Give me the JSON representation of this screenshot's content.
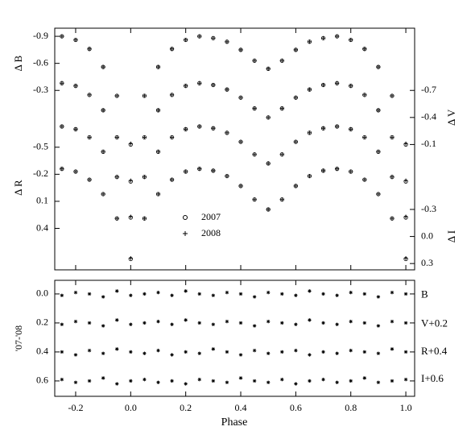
{
  "chart_data": {
    "type": "scatter",
    "x": [
      -0.25,
      -0.2,
      -0.15,
      -0.1,
      -0.05,
      0,
      0.05,
      0.1,
      0.15,
      0.2,
      0.25,
      0.3,
      0.35,
      0.4,
      0.45,
      0.5,
      0.55,
      0.6,
      0.65,
      0.7,
      0.75,
      0.8,
      0.85,
      0.9,
      0.95,
      1.0
    ],
    "xlim": [
      -0.276,
      1.032
    ],
    "xticks": [
      -0.2,
      {
        "value": 0,
        "label": "0.0"
      },
      0.2,
      0.4,
      0.6,
      0.8,
      {
        "value": 1,
        "label": "1.0"
      }
    ],
    "xlabel": "Phase",
    "y_inverted": true,
    "bands": [
      {
        "label": "Δ B",
        "side": "left",
        "ylim": [
          -0.99,
          1.69
        ],
        "yticks": [
          -0.9,
          -0.6,
          -0.3
        ],
        "series": [
          {
            "name": "2007",
            "marker": "circle",
            "values": [
              -0.9,
              -0.86,
              -0.76,
              -0.56,
              -0.24,
              0.3,
              -0.24,
              -0.56,
              -0.76,
              -0.86,
              -0.9,
              -0.88,
              -0.84,
              -0.75,
              -0.63,
              -0.54,
              -0.63,
              -0.75,
              -0.84,
              -0.88,
              -0.9,
              -0.86,
              -0.76,
              -0.56,
              -0.24,
              0.3
            ]
          },
          {
            "name": "2008",
            "marker": "plus",
            "values": [
              -0.9,
              -0.86,
              -0.76,
              -0.56,
              -0.24,
              0.29,
              -0.24,
              -0.56,
              -0.76,
              -0.86,
              -0.9,
              -0.88,
              -0.84,
              -0.75,
              -0.63,
              -0.54,
              -0.63,
              -0.75,
              -0.84,
              -0.88,
              -0.9,
              -0.86,
              -0.76,
              -0.56,
              -0.24,
              0.29
            ]
          }
        ]
      },
      {
        "label": "Δ V",
        "side": "right",
        "ylim": [
          -1.39,
          1.29
        ],
        "yticks": [
          -0.7,
          -0.4,
          -0.1
        ],
        "series": [
          {
            "name": "2007",
            "marker": "circle",
            "values": [
              -0.78,
              -0.75,
              -0.65,
              -0.48,
              -0.18,
              0.31,
              -0.18,
              -0.48,
              -0.65,
              -0.75,
              -0.78,
              -0.76,
              -0.71,
              -0.62,
              -0.5,
              -0.4,
              -0.5,
              -0.62,
              -0.71,
              -0.76,
              -0.78,
              -0.75,
              -0.65,
              -0.48,
              -0.18,
              0.31
            ]
          },
          {
            "name": "2008",
            "marker": "plus",
            "values": [
              -0.78,
              -0.75,
              -0.65,
              -0.48,
              -0.18,
              0.3,
              -0.18,
              -0.48,
              -0.65,
              -0.75,
              -0.78,
              -0.76,
              -0.71,
              -0.62,
              -0.5,
              -0.4,
              -0.5,
              -0.62,
              -0.71,
              -0.76,
              -0.78,
              -0.75,
              -0.65,
              -0.48,
              -0.18,
              0.3
            ]
          }
        ]
      },
      {
        "label": "Δ R",
        "side": "left",
        "ylim": [
          -1.82,
          0.86
        ],
        "yticks": [
          -0.5,
          -0.2,
          0.1,
          0.4
        ],
        "series": [
          {
            "name": "2007",
            "marker": "circle",
            "values": [
              -0.73,
              -0.7,
              -0.61,
              -0.45,
              -0.17,
              0.28,
              -0.17,
              -0.45,
              -0.61,
              -0.7,
              -0.73,
              -0.71,
              -0.66,
              -0.56,
              -0.42,
              -0.32,
              -0.42,
              -0.56,
              -0.66,
              -0.71,
              -0.73,
              -0.7,
              -0.61,
              -0.45,
              -0.17,
              0.28
            ]
          },
          {
            "name": "2008",
            "marker": "plus",
            "values": [
              -0.73,
              -0.7,
              -0.61,
              -0.45,
              -0.17,
              0.27,
              -0.17,
              -0.45,
              -0.61,
              -0.7,
              -0.73,
              -0.71,
              -0.66,
              -0.56,
              -0.42,
              -0.32,
              -0.42,
              -0.56,
              -0.66,
              -0.71,
              -0.73,
              -0.7,
              -0.61,
              -0.45,
              -0.17,
              0.27
            ]
          }
        ]
      },
      {
        "label": "Δ I",
        "side": "right",
        "ylim": [
          -2.31,
          0.37
        ],
        "yticks": [
          -0.3,
          {
            "value": 0,
            "label": "0.0"
          },
          0.3
        ],
        "series": [
          {
            "name": "2007",
            "marker": "circle",
            "values": [
              -0.75,
              -0.72,
              -0.63,
              -0.47,
              -0.2,
              0.25,
              -0.2,
              -0.47,
              -0.63,
              -0.72,
              -0.75,
              -0.73,
              -0.67,
              -0.56,
              -0.41,
              -0.3,
              -0.41,
              -0.56,
              -0.67,
              -0.73,
              -0.75,
              -0.72,
              -0.63,
              -0.47,
              -0.2,
              0.25
            ]
          },
          {
            "name": "2008",
            "marker": "plus",
            "values": [
              -0.75,
              -0.72,
              -0.63,
              -0.47,
              -0.2,
              0.24,
              -0.2,
              -0.47,
              -0.63,
              -0.72,
              -0.75,
              -0.73,
              -0.67,
              -0.56,
              -0.41,
              -0.3,
              -0.41,
              -0.56,
              -0.67,
              -0.73,
              -0.75,
              -0.72,
              -0.63,
              -0.47,
              -0.2,
              0.24
            ]
          }
        ]
      }
    ],
    "residuals": {
      "ylabel": "'07-'08",
      "ylim": [
        -0.094,
        0.706
      ],
      "yticks": [
        {
          "value": 0,
          "label": "0.0"
        },
        0.2,
        0.4,
        0.6
      ],
      "series": [
        {
          "name": "B",
          "values": [
            0.01,
            -0.01,
            0.0,
            0.02,
            -0.02,
            0.01,
            0.0,
            -0.01,
            0.01,
            -0.02,
            0.0,
            0.01,
            -0.01,
            0.0,
            0.02,
            -0.01,
            0.0,
            0.01,
            -0.02,
            0.0,
            0.01,
            -0.01,
            0.0,
            0.02,
            -0.01,
            0.0
          ]
        },
        {
          "name": "V+0.2",
          "values": [
            0.21,
            0.19,
            0.2,
            0.22,
            0.18,
            0.21,
            0.2,
            0.19,
            0.21,
            0.18,
            0.2,
            0.21,
            0.19,
            0.2,
            0.22,
            0.19,
            0.2,
            0.21,
            0.18,
            0.2,
            0.21,
            0.19,
            0.2,
            0.22,
            0.19,
            0.2
          ]
        },
        {
          "name": "R+0.4",
          "values": [
            0.4,
            0.42,
            0.39,
            0.41,
            0.38,
            0.4,
            0.41,
            0.39,
            0.42,
            0.4,
            0.41,
            0.38,
            0.4,
            0.42,
            0.39,
            0.41,
            0.4,
            0.39,
            0.42,
            0.4,
            0.41,
            0.39,
            0.4,
            0.41,
            0.38,
            0.4
          ]
        },
        {
          "name": "I+0.6",
          "values": [
            0.59,
            0.61,
            0.6,
            0.58,
            0.62,
            0.6,
            0.59,
            0.61,
            0.6,
            0.62,
            0.59,
            0.6,
            0.61,
            0.58,
            0.6,
            0.61,
            0.59,
            0.62,
            0.6,
            0.59,
            0.61,
            0.6,
            0.58,
            0.61,
            0.6,
            0.59
          ]
        }
      ]
    }
  }
}
